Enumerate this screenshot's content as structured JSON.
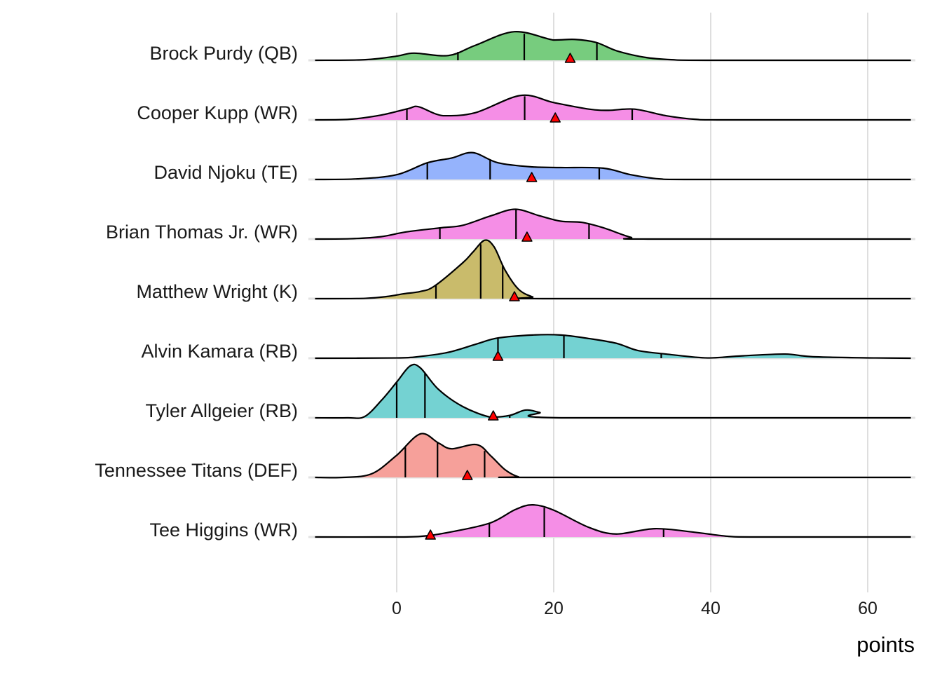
{
  "chart_data": {
    "type": "ridgeline",
    "title": "",
    "xlabel": "points",
    "ylabel": "",
    "xlim": [
      -10.4,
      65.5
    ],
    "x_ticks": [
      0,
      20,
      40,
      60
    ],
    "x_tick_labels": [
      "0",
      "20",
      "40",
      "60"
    ],
    "grid": true,
    "density_units": "relative height (1 = row spacing)",
    "marker_color": "#ff0000",
    "series": [
      {
        "name": "Brock Purdy (QB)",
        "color": "#77cc7e",
        "density": [
          [
            -10.4,
            0
          ],
          [
            -4,
            0.01
          ],
          [
            0,
            0.07
          ],
          [
            2.2,
            0.12
          ],
          [
            6.6,
            0.08
          ],
          [
            10,
            0.25
          ],
          [
            15,
            0.48
          ],
          [
            20,
            0.34
          ],
          [
            22.7,
            0.35
          ],
          [
            25.4,
            0.3
          ],
          [
            28,
            0.16
          ],
          [
            31.6,
            0.05
          ],
          [
            35,
            0.01
          ],
          [
            40,
            0
          ],
          [
            65.5,
            0
          ]
        ],
        "quantiles": [
          7.8,
          16.25,
          25.5
        ],
        "marker": 22.1
      },
      {
        "name": "Cooper Kupp (WR)",
        "color": "#f58ee6",
        "density": [
          [
            -10.4,
            0
          ],
          [
            -6,
            0.01
          ],
          [
            -2,
            0.08
          ],
          [
            1.5,
            0.19
          ],
          [
            2.8,
            0.22
          ],
          [
            5.9,
            0.07
          ],
          [
            10,
            0.12
          ],
          [
            15.8,
            0.41
          ],
          [
            20,
            0.29
          ],
          [
            24.5,
            0.18
          ],
          [
            27,
            0.16
          ],
          [
            30.3,
            0.18
          ],
          [
            34.3,
            0.07
          ],
          [
            38,
            0.01
          ],
          [
            42,
            0
          ],
          [
            65.5,
            0
          ]
        ],
        "quantiles": [
          1.3,
          16.3,
          30.0
        ],
        "marker": 20.2
      },
      {
        "name": "David Njoku (TE)",
        "color": "#95b3fc",
        "density": [
          [
            -10.4,
            0
          ],
          [
            -5,
            0.01
          ],
          [
            0,
            0.08
          ],
          [
            3.9,
            0.28
          ],
          [
            7,
            0.36
          ],
          [
            9.7,
            0.45
          ],
          [
            12.9,
            0.28
          ],
          [
            17.3,
            0.21
          ],
          [
            20.9,
            0.2
          ],
          [
            26.3,
            0.19
          ],
          [
            29.8,
            0.08
          ],
          [
            33.4,
            0.01
          ],
          [
            38,
            0
          ],
          [
            65.5,
            0
          ]
        ],
        "quantiles": [
          3.9,
          11.9,
          25.8
        ],
        "marker": 17.2
      },
      {
        "name": "Brian Thomas Jr. (WR)",
        "color": "#f58ee6",
        "density": [
          [
            -10.4,
            0
          ],
          [
            -6,
            0.005
          ],
          [
            -2,
            0.04
          ],
          [
            1.2,
            0.12
          ],
          [
            5.7,
            0.19
          ],
          [
            8.4,
            0.23
          ],
          [
            12,
            0.39
          ],
          [
            15.1,
            0.5
          ],
          [
            18.2,
            0.39
          ],
          [
            20.9,
            0.3
          ],
          [
            23.6,
            0.28
          ],
          [
            26.3,
            0.19
          ],
          [
            29.8,
            0.03
          ],
          [
            32,
            0
          ],
          [
            65.5,
            0
          ]
        ],
        "quantiles": [
          5.5,
          15.2,
          24.5
        ],
        "marker": 16.6
      },
      {
        "name": "Matthew Wright (K)",
        "color": "#c9bb6b",
        "density": [
          [
            -10.4,
            0
          ],
          [
            -4,
            0.005
          ],
          [
            -1,
            0.04
          ],
          [
            0.8,
            0.08
          ],
          [
            3,
            0.12
          ],
          [
            4.8,
            0.21
          ],
          [
            8.4,
            0.6
          ],
          [
            9.7,
            0.78
          ],
          [
            11.2,
            0.98
          ],
          [
            12.4,
            0.87
          ],
          [
            13.8,
            0.48
          ],
          [
            15.5,
            0.16
          ],
          [
            17.3,
            0.03
          ],
          [
            19,
            0
          ],
          [
            65.5,
            0
          ]
        ],
        "quantiles": [
          5.0,
          10.7,
          13.5
        ],
        "marker": 15.0
      },
      {
        "name": "Alvin Kamara (RB)",
        "color": "#74d2d2",
        "density": [
          [
            -10.4,
            0
          ],
          [
            0,
            0.005
          ],
          [
            3,
            0.03
          ],
          [
            6.6,
            0.1
          ],
          [
            10.2,
            0.24
          ],
          [
            12.9,
            0.34
          ],
          [
            17.3,
            0.39
          ],
          [
            20.9,
            0.39
          ],
          [
            24.5,
            0.33
          ],
          [
            28,
            0.25
          ],
          [
            30.7,
            0.13
          ],
          [
            34.3,
            0.07
          ],
          [
            39.6,
            0.005
          ],
          [
            44,
            0.04
          ],
          [
            49.5,
            0.07
          ],
          [
            53,
            0.025
          ],
          [
            61,
            0.005
          ],
          [
            65.5,
            0
          ]
        ],
        "quantiles": [
          12.9,
          21.3,
          33.7
        ],
        "marker": 12.9
      },
      {
        "name": "Tyler Allgeier (RB)",
        "color": "#74d2d2",
        "density": [
          [
            -10.4,
            0
          ],
          [
            -6.3,
            0
          ],
          [
            -4.1,
            0.02
          ],
          [
            -1.9,
            0.3
          ],
          [
            0,
            0.6
          ],
          [
            1.7,
            0.87
          ],
          [
            3,
            0.84
          ],
          [
            5.3,
            0.48
          ],
          [
            8.4,
            0.19
          ],
          [
            12,
            0.01
          ],
          [
            14.4,
            0.04
          ],
          [
            16.4,
            0.13
          ],
          [
            18.2,
            0.09
          ],
          [
            20.9,
            0
          ],
          [
            65.5,
            0
          ]
        ],
        "quantiles": [
          0.0,
          3.6,
          14.4
        ],
        "marker": 12.3
      },
      {
        "name": "Tennessee Titans (DEF)",
        "color": "#f6a09a",
        "density": [
          [
            -10.4,
            0
          ],
          [
            -6.8,
            0
          ],
          [
            -3.2,
            0.06
          ],
          [
            -0.1,
            0.36
          ],
          [
            3,
            0.73
          ],
          [
            5.3,
            0.58
          ],
          [
            7,
            0.48
          ],
          [
            10.2,
            0.55
          ],
          [
            12,
            0.36
          ],
          [
            13.8,
            0.13
          ],
          [
            15.5,
            0.01
          ],
          [
            17,
            0
          ],
          [
            65.5,
            0
          ]
        ],
        "quantiles": [
          1.1,
          5.2,
          11.2
        ],
        "marker": 9.0
      },
      {
        "name": "Tee Higgins (WR)",
        "color": "#f58ee6",
        "density": [
          [
            -10.4,
            0
          ],
          [
            -2.3,
            0
          ],
          [
            3,
            0.01
          ],
          [
            7.5,
            0.1
          ],
          [
            12,
            0.24
          ],
          [
            15.1,
            0.46
          ],
          [
            17.3,
            0.54
          ],
          [
            20,
            0.45
          ],
          [
            24.5,
            0.16
          ],
          [
            28,
            0.05
          ],
          [
            32.9,
            0.14
          ],
          [
            37.9,
            0.08
          ],
          [
            42.3,
            0.01
          ],
          [
            46,
            0
          ],
          [
            65.5,
            0
          ]
        ],
        "quantiles": [
          11.8,
          18.8,
          34.0
        ],
        "marker": 4.3
      }
    ]
  }
}
